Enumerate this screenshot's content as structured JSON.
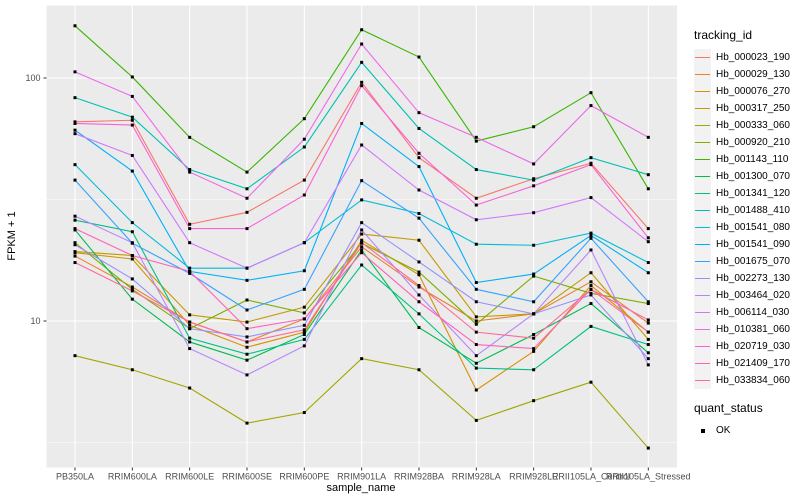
{
  "figure": {
    "background": "#FFFFFF",
    "panel_background": "#EBEBEB",
    "grid_color": "#FFFFFF",
    "tick_label_color": "#4D4D4D"
  },
  "chart_data": {
    "type": "line",
    "title": "",
    "xlabel": "sample_name",
    "ylabel": "FPKM + 1",
    "y_scale": "log10",
    "y_ticks": [
      10,
      100
    ],
    "y_minor_gridlines": [
      3.162,
      31.62
    ],
    "ylim_approx": [
      2.5,
      200
    ],
    "grid": true,
    "legend_position": "right",
    "marker": {
      "shape": "filled-square",
      "color": "#000000",
      "size": 3
    },
    "categories": [
      "PB350LA",
      "RRIM600LA",
      "RRIM600LE",
      "RRIM600SE",
      "RRIM600PE",
      "RRIM901LA",
      "RRIM928BA",
      "RRIM928LA",
      "RRIM928LE",
      "RRII105LA_Control",
      "RRII105LA_Stressed"
    ],
    "series": [
      {
        "name": "Hb_000023_190",
        "color": "#F8766D",
        "values": [
          66,
          67,
          25,
          28,
          38,
          96,
          47,
          32,
          38.5,
          44.6,
          24
        ]
      },
      {
        "name": "Hb_000029_130",
        "color": "#EA8331",
        "values": [
          18.5,
          13.8,
          9.9,
          8.2,
          10.2,
          20.2,
          13.8,
          10,
          10.7,
          14.5,
          9.8
        ]
      },
      {
        "name": "Hb_000076_270",
        "color": "#D89000",
        "values": [
          19.1,
          18,
          9.6,
          7.8,
          9,
          21.5,
          15.5,
          5.2,
          7.5,
          14,
          9
        ]
      },
      {
        "name": "Hb_000317_250",
        "color": "#C49A00",
        "values": [
          19.3,
          18.6,
          10.6,
          9.9,
          11.4,
          22.8,
          21.5,
          10.4,
          10.7,
          15.8,
          8.4
        ]
      },
      {
        "name": "Hb_000333_060",
        "color": "#A3A500",
        "values": [
          7.2,
          6.3,
          5.3,
          3.8,
          4.2,
          7,
          6.3,
          3.9,
          4.7,
          5.6,
          3
        ]
      },
      {
        "name": "Hb_000920_210",
        "color": "#7CAE00",
        "values": [
          21,
          13.5,
          9.3,
          12.2,
          10.8,
          20.9,
          15.9,
          9.7,
          15.3,
          13,
          11.8
        ]
      },
      {
        "name": "Hb_001143_110",
        "color": "#39B600",
        "values": [
          164,
          101,
          57,
          41,
          68,
          158,
          122,
          55,
          63,
          87,
          35
        ]
      },
      {
        "name": "Hb_001300_070",
        "color": "#00BB4E",
        "values": [
          23.7,
          12.3,
          8.2,
          6.9,
          8.8,
          19.6,
          9.4,
          6.7,
          8.8,
          11.8,
          7.4
        ]
      },
      {
        "name": "Hb_001341_120",
        "color": "#00C087",
        "values": [
          26,
          23.3,
          8.5,
          7.3,
          8.4,
          17,
          10.7,
          6.4,
          6.3,
          9.5,
          8
        ]
      },
      {
        "name": "Hb_001488_410",
        "color": "#00C0B2",
        "values": [
          83,
          69,
          42,
          35,
          52,
          116,
          62,
          42,
          38,
          47,
          40
        ]
      },
      {
        "name": "Hb_001541_080",
        "color": "#00BCD8",
        "values": [
          44,
          25.4,
          16.5,
          16.5,
          21,
          31.5,
          27.7,
          20.7,
          20.5,
          23,
          17.4
        ]
      },
      {
        "name": "Hb_001541_090",
        "color": "#00B0F6",
        "values": [
          61,
          41.4,
          16,
          14.7,
          16.1,
          65,
          43.2,
          14.4,
          15.6,
          22.5,
          15.8
        ]
      },
      {
        "name": "Hb_001675_070",
        "color": "#35A2FF",
        "values": [
          38,
          20.9,
          15.7,
          11.1,
          13.5,
          37.8,
          26.5,
          13.5,
          12,
          21.9,
          12
        ]
      },
      {
        "name": "Hb_002273_130",
        "color": "#9590FF",
        "values": [
          20.6,
          14.9,
          9.3,
          8.6,
          9.6,
          25.4,
          17.5,
          12,
          10.7,
          12.8,
          7
        ]
      },
      {
        "name": "Hb_003464_020",
        "color": "#B983FF",
        "values": [
          27,
          21,
          7.7,
          6,
          7.9,
          23.7,
          12.8,
          7.2,
          10.7,
          19.6,
          6.6
        ]
      },
      {
        "name": "Hb_006114_030",
        "color": "#D376FF",
        "values": [
          59,
          48,
          21,
          16.5,
          21,
          53,
          34.6,
          26.1,
          27.9,
          32.2,
          21.2
        ]
      },
      {
        "name": "Hb_010381_060",
        "color": "#EF67EB",
        "values": [
          106,
          84,
          41,
          32,
          56,
          138,
          72,
          57,
          44.3,
          77,
          57
        ]
      },
      {
        "name": "Hb_020719_030",
        "color": "#FB61D7",
        "values": [
          65,
          64,
          24,
          24,
          33,
          93,
          49,
          30,
          36,
          44,
          22
        ]
      },
      {
        "name": "Hb_021409_170",
        "color": "#FF62BC",
        "values": [
          24,
          18.6,
          16,
          9.3,
          10.2,
          19.1,
          12,
          8,
          7.7,
          13.5,
          10.1
        ]
      },
      {
        "name": "Hb_033834_060",
        "color": "#FF6A98",
        "values": [
          17.4,
          13.3,
          9.9,
          8.2,
          9.2,
          21,
          14,
          9,
          8.5,
          13.5,
          9
        ]
      }
    ],
    "legend": {
      "tracking_title": "tracking_id",
      "quant_title": "quant_status",
      "quant_items": [
        {
          "label": "OK"
        }
      ]
    }
  }
}
